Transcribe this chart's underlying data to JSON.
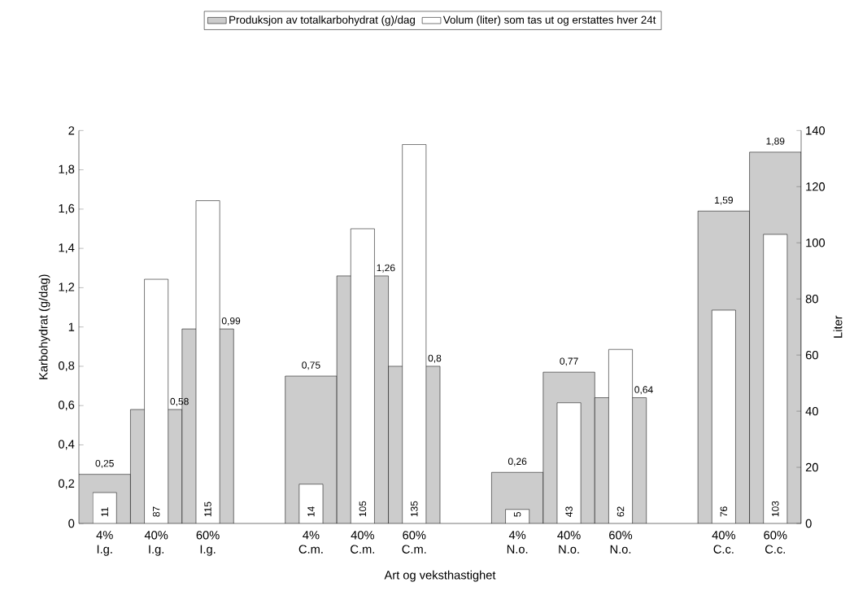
{
  "chart_data": {
    "type": "bar",
    "xlabel": "Art og veksthastighet",
    "ylabel": "Karbohydrat (g/dag)",
    "y2label": "Liter",
    "categories": [
      "4% I.g.",
      "40% I.g.",
      "60% I.g.",
      null,
      "4% C.m.",
      "40% C.m.",
      "60% C.m.",
      null,
      "4% N.o.",
      "40% N.o.",
      "60% N.o.",
      null,
      "40% C.c.",
      "60% C.c."
    ],
    "series": [
      {
        "name": "Produksjon av totalkarbohydrat (g)/dag",
        "color": "#cccccc",
        "axis": "y",
        "values": [
          0.25,
          0.58,
          0.99,
          null,
          0.75,
          1.26,
          0.8,
          null,
          0.26,
          0.77,
          0.64,
          null,
          1.59,
          1.89
        ],
        "value_labels": [
          "0,25",
          "0,58",
          "0,99",
          null,
          "0,75",
          "1,26",
          "0,8",
          null,
          "0,26",
          "0,77",
          "0,64",
          null,
          "1,59",
          "1,89"
        ]
      },
      {
        "name": "Volum (liter) som tas ut og erstattes hver 24t",
        "color": "#ffffff",
        "axis": "y2",
        "values": [
          11,
          87,
          115,
          null,
          14,
          105,
          135,
          null,
          5,
          43,
          62,
          null,
          76,
          103
        ],
        "value_labels": [
          "11",
          "87",
          "115",
          null,
          "14",
          "105",
          "135",
          null,
          "5",
          "43",
          "62",
          null,
          "76",
          "103"
        ]
      }
    ],
    "ylim": [
      0,
      2
    ],
    "yticks": [
      0,
      {
        "value": 0.2,
        "label": "0,2"
      },
      {
        "value": 0.4,
        "label": "0,4"
      },
      {
        "value": 0.6,
        "label": "0,6"
      },
      {
        "value": 0.8,
        "label": "0,8"
      },
      1,
      {
        "value": 1.2,
        "label": "1,2"
      },
      {
        "value": 1.4,
        "label": "1,4"
      },
      {
        "value": 1.6,
        "label": "1,6"
      },
      {
        "value": 1.8,
        "label": "1,8"
      },
      2
    ],
    "y2lim": [
      0,
      140
    ],
    "y2ticks": [
      0,
      20,
      40,
      60,
      80,
      100,
      120,
      140
    ],
    "legend": "top"
  }
}
